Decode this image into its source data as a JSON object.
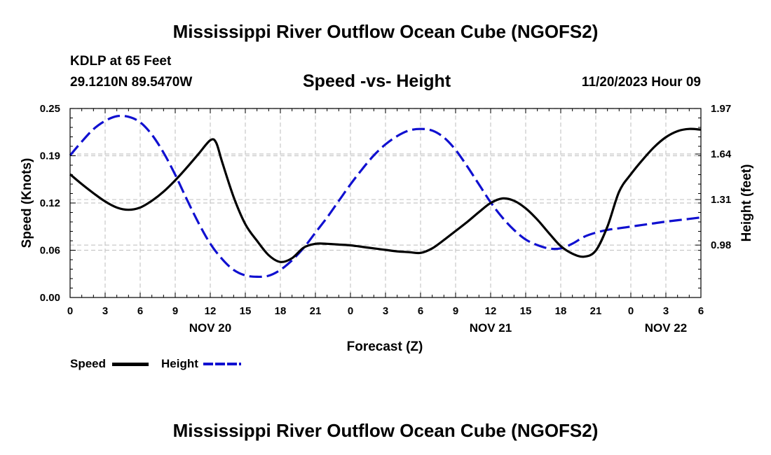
{
  "page_title": "Mississippi River Outflow Ocean Cube (NGOFS2)",
  "footer_title": "Mississippi River Outflow Ocean Cube (NGOFS2)",
  "station": {
    "name": "KDLP at 65 Feet",
    "coords": "29.1210N  89.5470W",
    "issued": "11/20/2023 Hour 09"
  },
  "chart_data": {
    "type": "line",
    "title": "Speed -vs- Height",
    "xlabel": "Forecast (Z)",
    "ylabel": "Speed (Knots)",
    "y2label": "Height (feet)",
    "x_hours": [
      0,
      54
    ],
    "xlim": [
      0,
      54
    ],
    "ylim": [
      0,
      0.25
    ],
    "y2lim": [
      0.6,
      1.97
    ],
    "x_ticks": [
      {
        "h": 0,
        "label": "0"
      },
      {
        "h": 3,
        "label": "3"
      },
      {
        "h": 6,
        "label": "6"
      },
      {
        "h": 9,
        "label": "9"
      },
      {
        "h": 12,
        "label": "12"
      },
      {
        "h": 15,
        "label": "15"
      },
      {
        "h": 18,
        "label": "18"
      },
      {
        "h": 21,
        "label": "21"
      },
      {
        "h": 24,
        "label": "0"
      },
      {
        "h": 27,
        "label": "3"
      },
      {
        "h": 30,
        "label": "6"
      },
      {
        "h": 33,
        "label": "9"
      },
      {
        "h": 36,
        "label": "12"
      },
      {
        "h": 39,
        "label": "15"
      },
      {
        "h": 42,
        "label": "18"
      },
      {
        "h": 45,
        "label": "21"
      },
      {
        "h": 48,
        "label": "0"
      },
      {
        "h": 51,
        "label": "3"
      },
      {
        "h": 54,
        "label": "6"
      }
    ],
    "date_labels": [
      {
        "h": 12,
        "label": "NOV 20"
      },
      {
        "h": 36,
        "label": "NOV 21"
      },
      {
        "h": 51,
        "label": "NOV 22"
      }
    ],
    "y_ticks": [
      {
        "v": 0.0,
        "label": "0.00"
      },
      {
        "v": 0.0625,
        "label": "0.06"
      },
      {
        "v": 0.125,
        "label": "0.12"
      },
      {
        "v": 0.1875,
        "label": "0.19"
      },
      {
        "v": 0.25,
        "label": "0.25"
      }
    ],
    "y2_ticks": [
      {
        "v": 0.98,
        "label": "0.98"
      },
      {
        "v": 1.31,
        "label": "1.31"
      },
      {
        "v": 1.64,
        "label": "1.64"
      },
      {
        "v": 1.97,
        "label": "1.97"
      }
    ],
    "series": [
      {
        "name": "Speed",
        "axis": "left",
        "color": "#000000",
        "dash": "solid",
        "points": [
          [
            0,
            0.163
          ],
          [
            1,
            0.15
          ],
          [
            2,
            0.138
          ],
          [
            3,
            0.127
          ],
          [
            4,
            0.119
          ],
          [
            5,
            0.116
          ],
          [
            6,
            0.119
          ],
          [
            7,
            0.128
          ],
          [
            8,
            0.14
          ],
          [
            9,
            0.155
          ],
          [
            10,
            0.172
          ],
          [
            11,
            0.19
          ],
          [
            12,
            0.208
          ],
          [
            12.5,
            0.205
          ],
          [
            13,
            0.18
          ],
          [
            14,
            0.133
          ],
          [
            15,
            0.097
          ],
          [
            16,
            0.075
          ],
          [
            17,
            0.056
          ],
          [
            18,
            0.047
          ],
          [
            19,
            0.052
          ],
          [
            20,
            0.066
          ],
          [
            21,
            0.071
          ],
          [
            22,
            0.071
          ],
          [
            23,
            0.07
          ],
          [
            24,
            0.069
          ],
          [
            25,
            0.067
          ],
          [
            26,
            0.065
          ],
          [
            27,
            0.063
          ],
          [
            28,
            0.061
          ],
          [
            29,
            0.06
          ],
          [
            30,
            0.059
          ],
          [
            31,
            0.065
          ],
          [
            32,
            0.076
          ],
          [
            33,
            0.088
          ],
          [
            34,
            0.1
          ],
          [
            35,
            0.113
          ],
          [
            36,
            0.125
          ],
          [
            37,
            0.131
          ],
          [
            38,
            0.128
          ],
          [
            39,
            0.118
          ],
          [
            40,
            0.103
          ],
          [
            41,
            0.085
          ],
          [
            42,
            0.068
          ],
          [
            43,
            0.058
          ],
          [
            44,
            0.054
          ],
          [
            45,
            0.062
          ],
          [
            46,
            0.094
          ],
          [
            47,
            0.14
          ],
          [
            48,
            0.163
          ],
          [
            49,
            0.182
          ],
          [
            50,
            0.199
          ],
          [
            51,
            0.212
          ],
          [
            52,
            0.22
          ],
          [
            53,
            0.223
          ],
          [
            54,
            0.222
          ]
        ]
      },
      {
        "name": "Height",
        "axis": "right",
        "color": "#1010d0",
        "dash": "dashed",
        "points": [
          [
            0,
            1.63
          ],
          [
            1,
            1.73
          ],
          [
            2,
            1.82
          ],
          [
            3,
            1.88
          ],
          [
            4,
            1.914
          ],
          [
            5,
            1.91
          ],
          [
            6,
            1.87
          ],
          [
            7,
            1.78
          ],
          [
            8,
            1.65
          ],
          [
            9,
            1.49
          ],
          [
            10,
            1.31
          ],
          [
            11,
            1.14
          ],
          [
            12,
            0.99
          ],
          [
            13,
            0.88
          ],
          [
            14,
            0.8
          ],
          [
            15,
            0.76
          ],
          [
            16,
            0.75
          ],
          [
            17,
            0.758
          ],
          [
            18,
            0.8
          ],
          [
            19,
            0.87
          ],
          [
            20,
            0.96
          ],
          [
            21,
            1.07
          ],
          [
            22,
            1.18
          ],
          [
            23,
            1.3
          ],
          [
            24,
            1.42
          ],
          [
            25,
            1.53
          ],
          [
            26,
            1.63
          ],
          [
            27,
            1.71
          ],
          [
            28,
            1.77
          ],
          [
            29,
            1.81
          ],
          [
            30,
            1.822
          ],
          [
            31,
            1.81
          ],
          [
            32,
            1.76
          ],
          [
            33,
            1.67
          ],
          [
            34,
            1.55
          ],
          [
            35,
            1.42
          ],
          [
            36,
            1.29
          ],
          [
            37,
            1.18
          ],
          [
            38,
            1.09
          ],
          [
            39,
            1.02
          ],
          [
            40,
            0.98
          ],
          [
            41,
            0.955
          ],
          [
            42,
            0.956
          ],
          [
            43,
            0.99
          ],
          [
            44,
            1.04
          ],
          [
            45,
            1.07
          ],
          [
            46,
            1.09
          ],
          [
            47,
            1.102
          ],
          [
            48,
            1.114
          ],
          [
            49,
            1.126
          ],
          [
            50,
            1.138
          ],
          [
            51,
            1.15
          ],
          [
            52,
            1.16
          ],
          [
            53,
            1.17
          ],
          [
            54,
            1.18
          ]
        ]
      }
    ],
    "legend": [
      {
        "name": "Speed",
        "color": "#000000",
        "dash": "solid"
      },
      {
        "name": "Height",
        "color": "#1010d0",
        "dash": "dashed"
      }
    ]
  }
}
